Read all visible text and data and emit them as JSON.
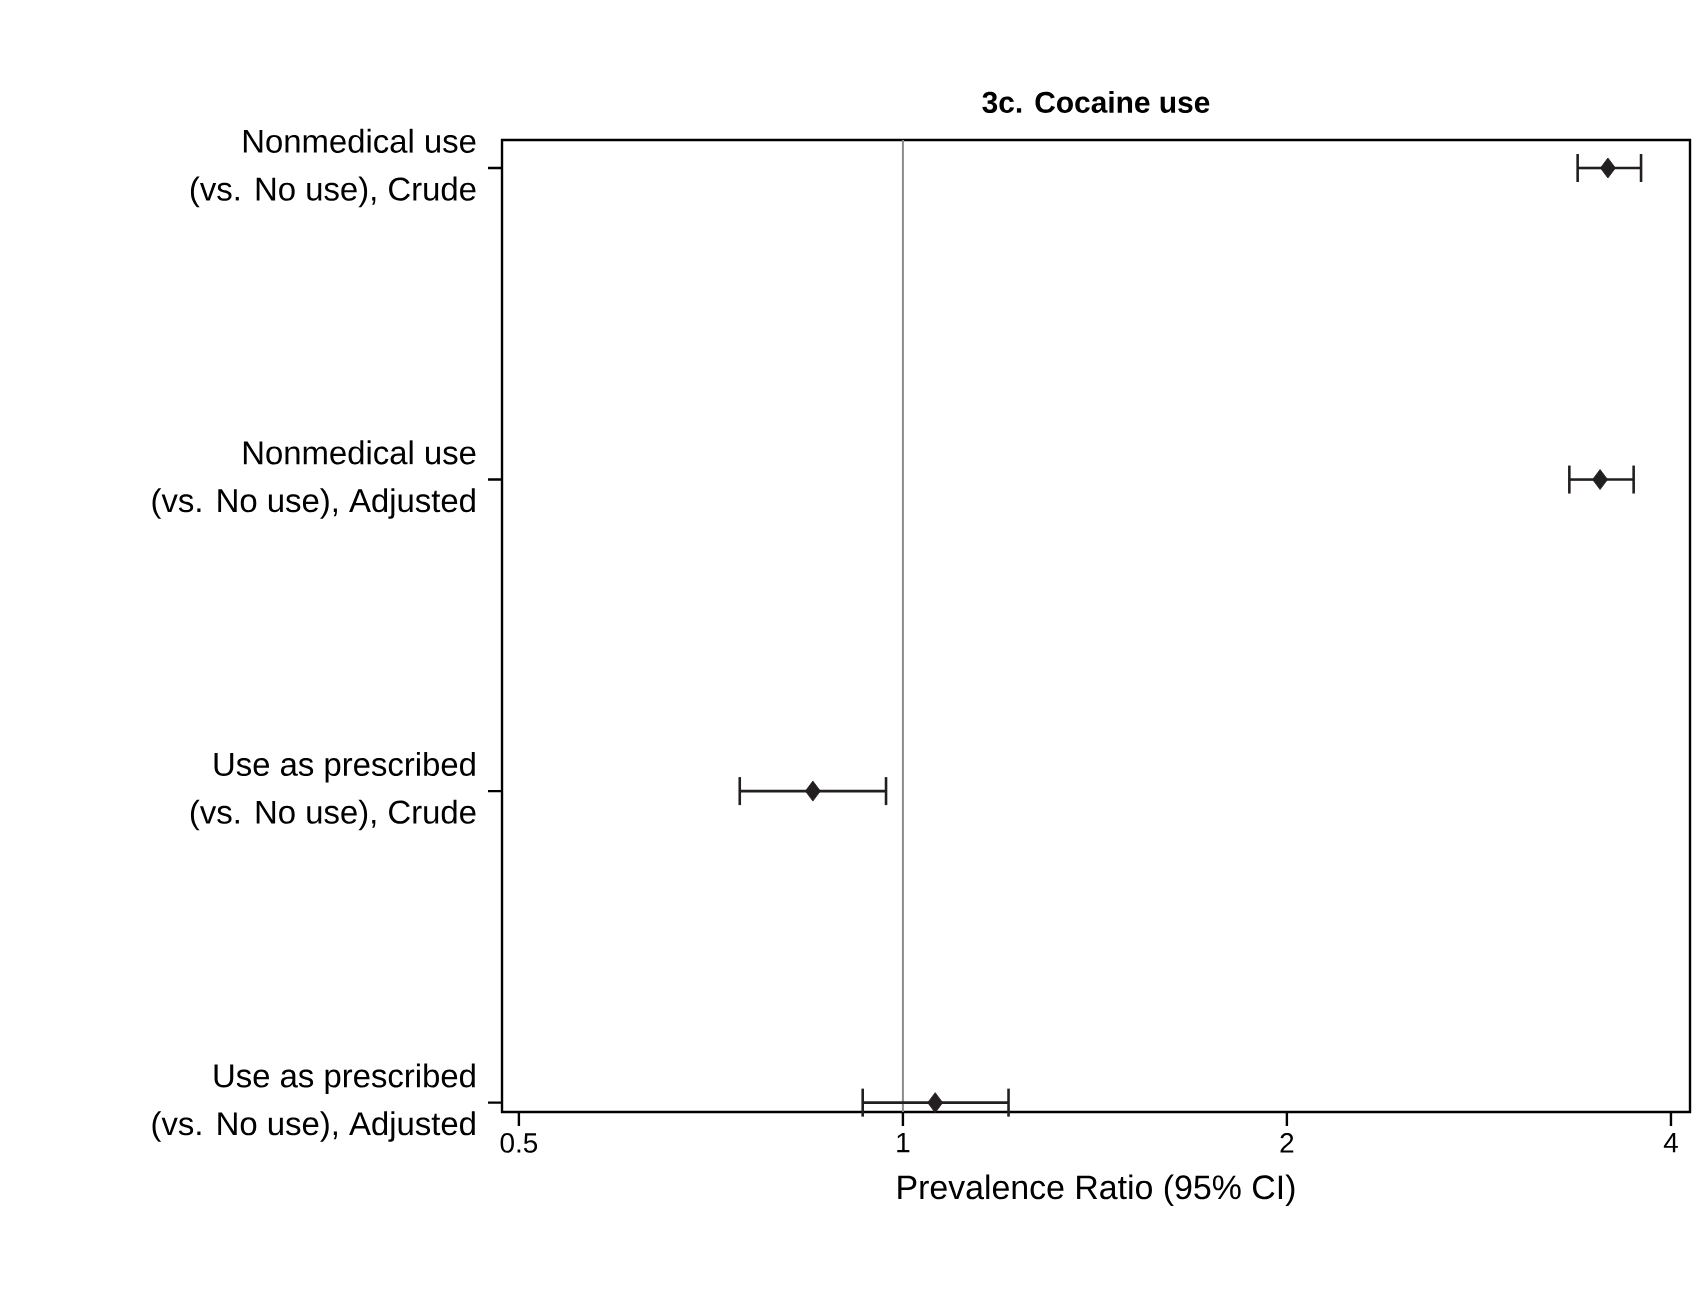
{
  "chart_data": {
    "type": "scatter",
    "orientation": "horizontal",
    "title": "3c. Cocaine use",
    "xlabel": "Prevalence Ratio (95% CI)",
    "categories": [
      "Nonmedical use\n(vs. No use), Crude",
      "Nonmedical use\n(vs. No use), Adjusted",
      "Use as prescribed\n(vs. No use), Crude",
      "Use as prescribed\n(vs. No use), Adjusted"
    ],
    "values": [
      3.57,
      3.52,
      0.85,
      1.06
    ],
    "errors": [
      [
        3.38,
        3.79
      ],
      [
        3.33,
        3.74
      ],
      [
        0.745,
        0.97
      ],
      [
        0.93,
        1.21
      ]
    ],
    "color": "#231f20",
    "marker": "diamond",
    "log": "x",
    "xlim": [
      0.485,
      4.14
    ],
    "xticks": [
      0.5,
      1,
      2,
      4
    ],
    "ref_lines": [
      {
        "axis": "x",
        "value": 1,
        "color": "#8c8c8c"
      }
    ],
    "grid": false
  }
}
